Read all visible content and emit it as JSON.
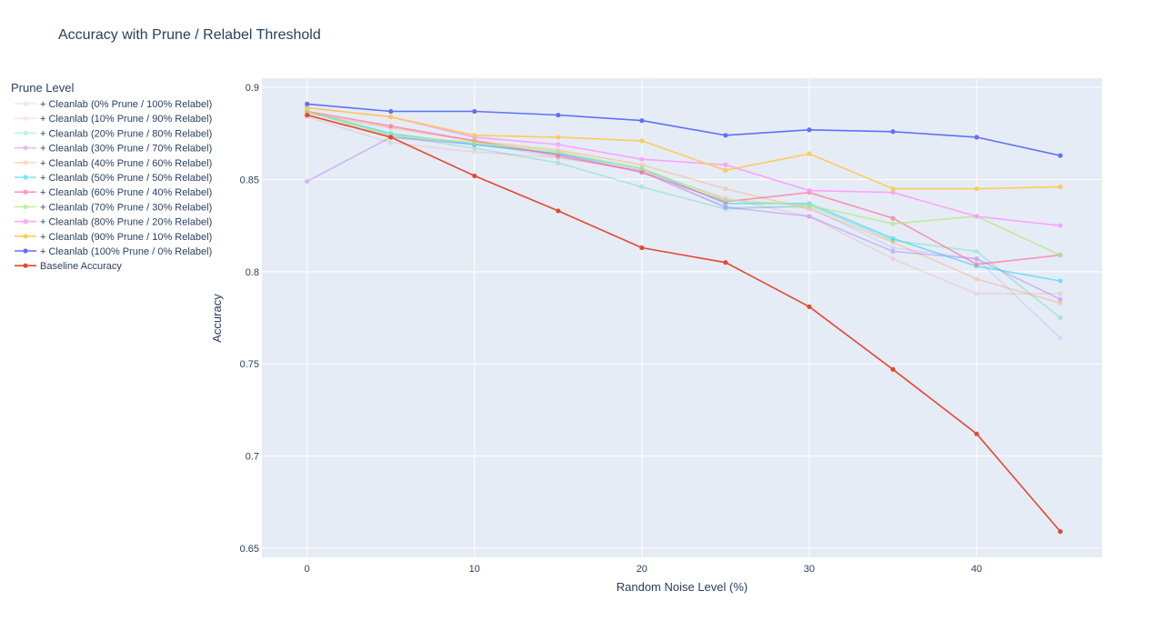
{
  "chart_data": {
    "type": "line",
    "title": "Accuracy with Prune / Relabel Threshold",
    "xlabel": "Random Noise Level (%)",
    "ylabel": "Accuracy",
    "xlim": [
      -2.7,
      47.5
    ],
    "ylim": [
      0.645,
      0.905
    ],
    "x_ticks": [
      0,
      10,
      20,
      30,
      40
    ],
    "y_ticks": [
      0.65,
      0.7,
      0.75,
      0.8,
      0.85,
      0.9
    ],
    "grid": true,
    "legend_title": "Prune Level",
    "legend_position": "left",
    "x": [
      0,
      5,
      10,
      15,
      20,
      25,
      30,
      35,
      40,
      45
    ],
    "series": [
      {
        "name": "+ Cleanlab (0% Prune / 100% Relabel)",
        "color": "#636efa",
        "opacity": 0.15,
        "values": [
          0.887,
          0.873,
          0.87,
          0.862,
          0.855,
          0.835,
          0.835,
          0.813,
          0.807,
          0.764
        ]
      },
      {
        "name": "+ Cleanlab (10% Prune / 90% Relabel)",
        "color": "#ef553b",
        "opacity": 0.15,
        "values": [
          0.884,
          0.87,
          0.865,
          0.862,
          0.855,
          0.84,
          0.83,
          0.807,
          0.788,
          0.788
        ]
      },
      {
        "name": "+ Cleanlab (20% Prune / 80% Relabel)",
        "color": "#00cc96",
        "opacity": 0.25,
        "values": [
          0.887,
          0.874,
          0.867,
          0.859,
          0.846,
          0.834,
          0.836,
          0.817,
          0.811,
          0.775
        ]
      },
      {
        "name": "+ Cleanlab (30% Prune / 70% Relabel)",
        "color": "#ab63fa",
        "opacity": 0.4,
        "values": [
          0.849,
          0.873,
          0.869,
          0.864,
          0.854,
          0.835,
          0.83,
          0.811,
          0.807,
          0.785
        ]
      },
      {
        "name": "+ Cleanlab (40% Prune / 60% Relabel)",
        "color": "#ffa15a",
        "opacity": 0.4,
        "values": [
          0.886,
          0.878,
          0.871,
          0.866,
          0.858,
          0.845,
          0.834,
          0.816,
          0.796,
          0.783
        ]
      },
      {
        "name": "+ Cleanlab (50% Prune / 50% Relabel)",
        "color": "#19d3f3",
        "opacity": 0.55,
        "values": [
          0.887,
          0.875,
          0.869,
          0.864,
          0.856,
          0.837,
          0.837,
          0.818,
          0.803,
          0.795
        ]
      },
      {
        "name": "+ Cleanlab (60% Prune / 40% Relabel)",
        "color": "#ff6692",
        "opacity": 0.65,
        "values": [
          0.887,
          0.879,
          0.871,
          0.863,
          0.854,
          0.838,
          0.843,
          0.829,
          0.804,
          0.809
        ]
      },
      {
        "name": "+ Cleanlab (70% Prune / 30% Relabel)",
        "color": "#b6e880",
        "opacity": 0.75,
        "values": [
          0.887,
          0.874,
          0.87,
          0.865,
          0.856,
          0.839,
          0.836,
          0.826,
          0.83,
          0.809
        ]
      },
      {
        "name": "+ Cleanlab (80% Prune / 20% Relabel)",
        "color": "#ff97ff",
        "opacity": 0.85,
        "values": [
          0.889,
          0.884,
          0.873,
          0.869,
          0.861,
          0.858,
          0.844,
          0.843,
          0.83,
          0.825
        ]
      },
      {
        "name": "+ Cleanlab (90% Prune / 10% Relabel)",
        "color": "#fecb52",
        "opacity": 0.95,
        "values": [
          0.889,
          0.884,
          0.874,
          0.873,
          0.871,
          0.855,
          0.864,
          0.845,
          0.845,
          0.846
        ]
      },
      {
        "name": "+ Cleanlab (100% Prune / 0% Relabel)",
        "color": "#636efa",
        "opacity": 1,
        "values": [
          0.891,
          0.887,
          0.887,
          0.885,
          0.882,
          0.874,
          0.877,
          0.876,
          0.873,
          0.863
        ]
      },
      {
        "name": "Baseline Accuracy",
        "color": "#e5482e",
        "opacity": 1,
        "values": [
          0.885,
          0.873,
          0.852,
          0.833,
          0.813,
          0.805,
          0.781,
          0.747,
          0.712,
          0.659
        ]
      }
    ]
  }
}
